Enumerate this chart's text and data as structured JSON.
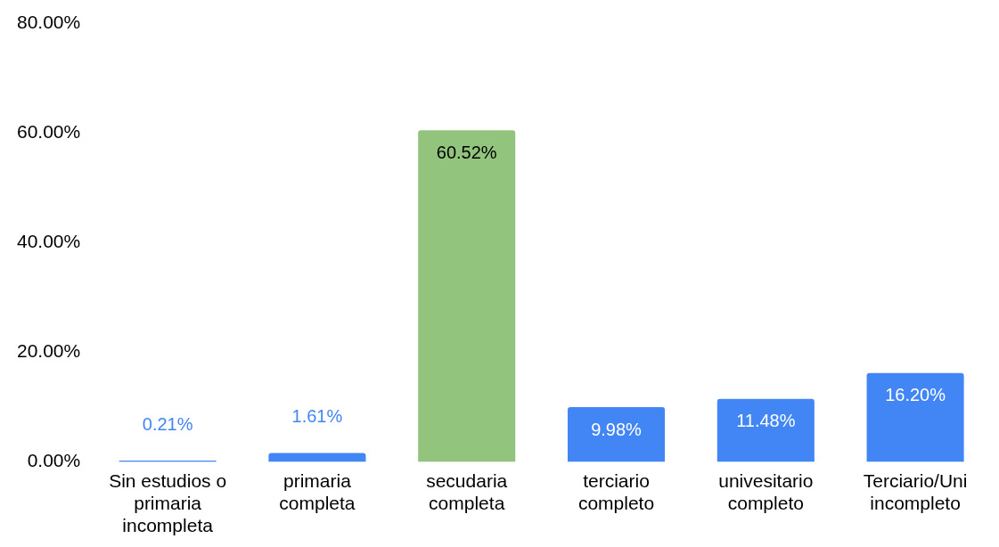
{
  "chart_data": {
    "type": "bar",
    "categories": [
      "Sin estudios o primaria incompleta",
      "primaria completa",
      "secudaria completa",
      "terciario completo",
      "univesitario completo",
      "Terciario/Uni incompleto"
    ],
    "values": [
      0.21,
      1.61,
      60.52,
      9.98,
      11.48,
      16.2
    ],
    "colors": [
      "#4285f4",
      "#4285f4",
      "#93c47d",
      "#4285f4",
      "#4285f4",
      "#4285f4"
    ],
    "value_labels": [
      "0.21%",
      "1.61%",
      "60.52%",
      "9.98%",
      "11.48%",
      "16.20%"
    ],
    "ylim": [
      0,
      80
    ],
    "yticks": [
      {
        "value": 0,
        "label": "0.00%"
      },
      {
        "value": 20,
        "label": "20.00%"
      },
      {
        "value": 40,
        "label": "40.00%"
      },
      {
        "value": 60,
        "label": "60.00%"
      },
      {
        "value": 80,
        "label": "80.00%"
      }
    ],
    "grid": false,
    "legend": false
  }
}
